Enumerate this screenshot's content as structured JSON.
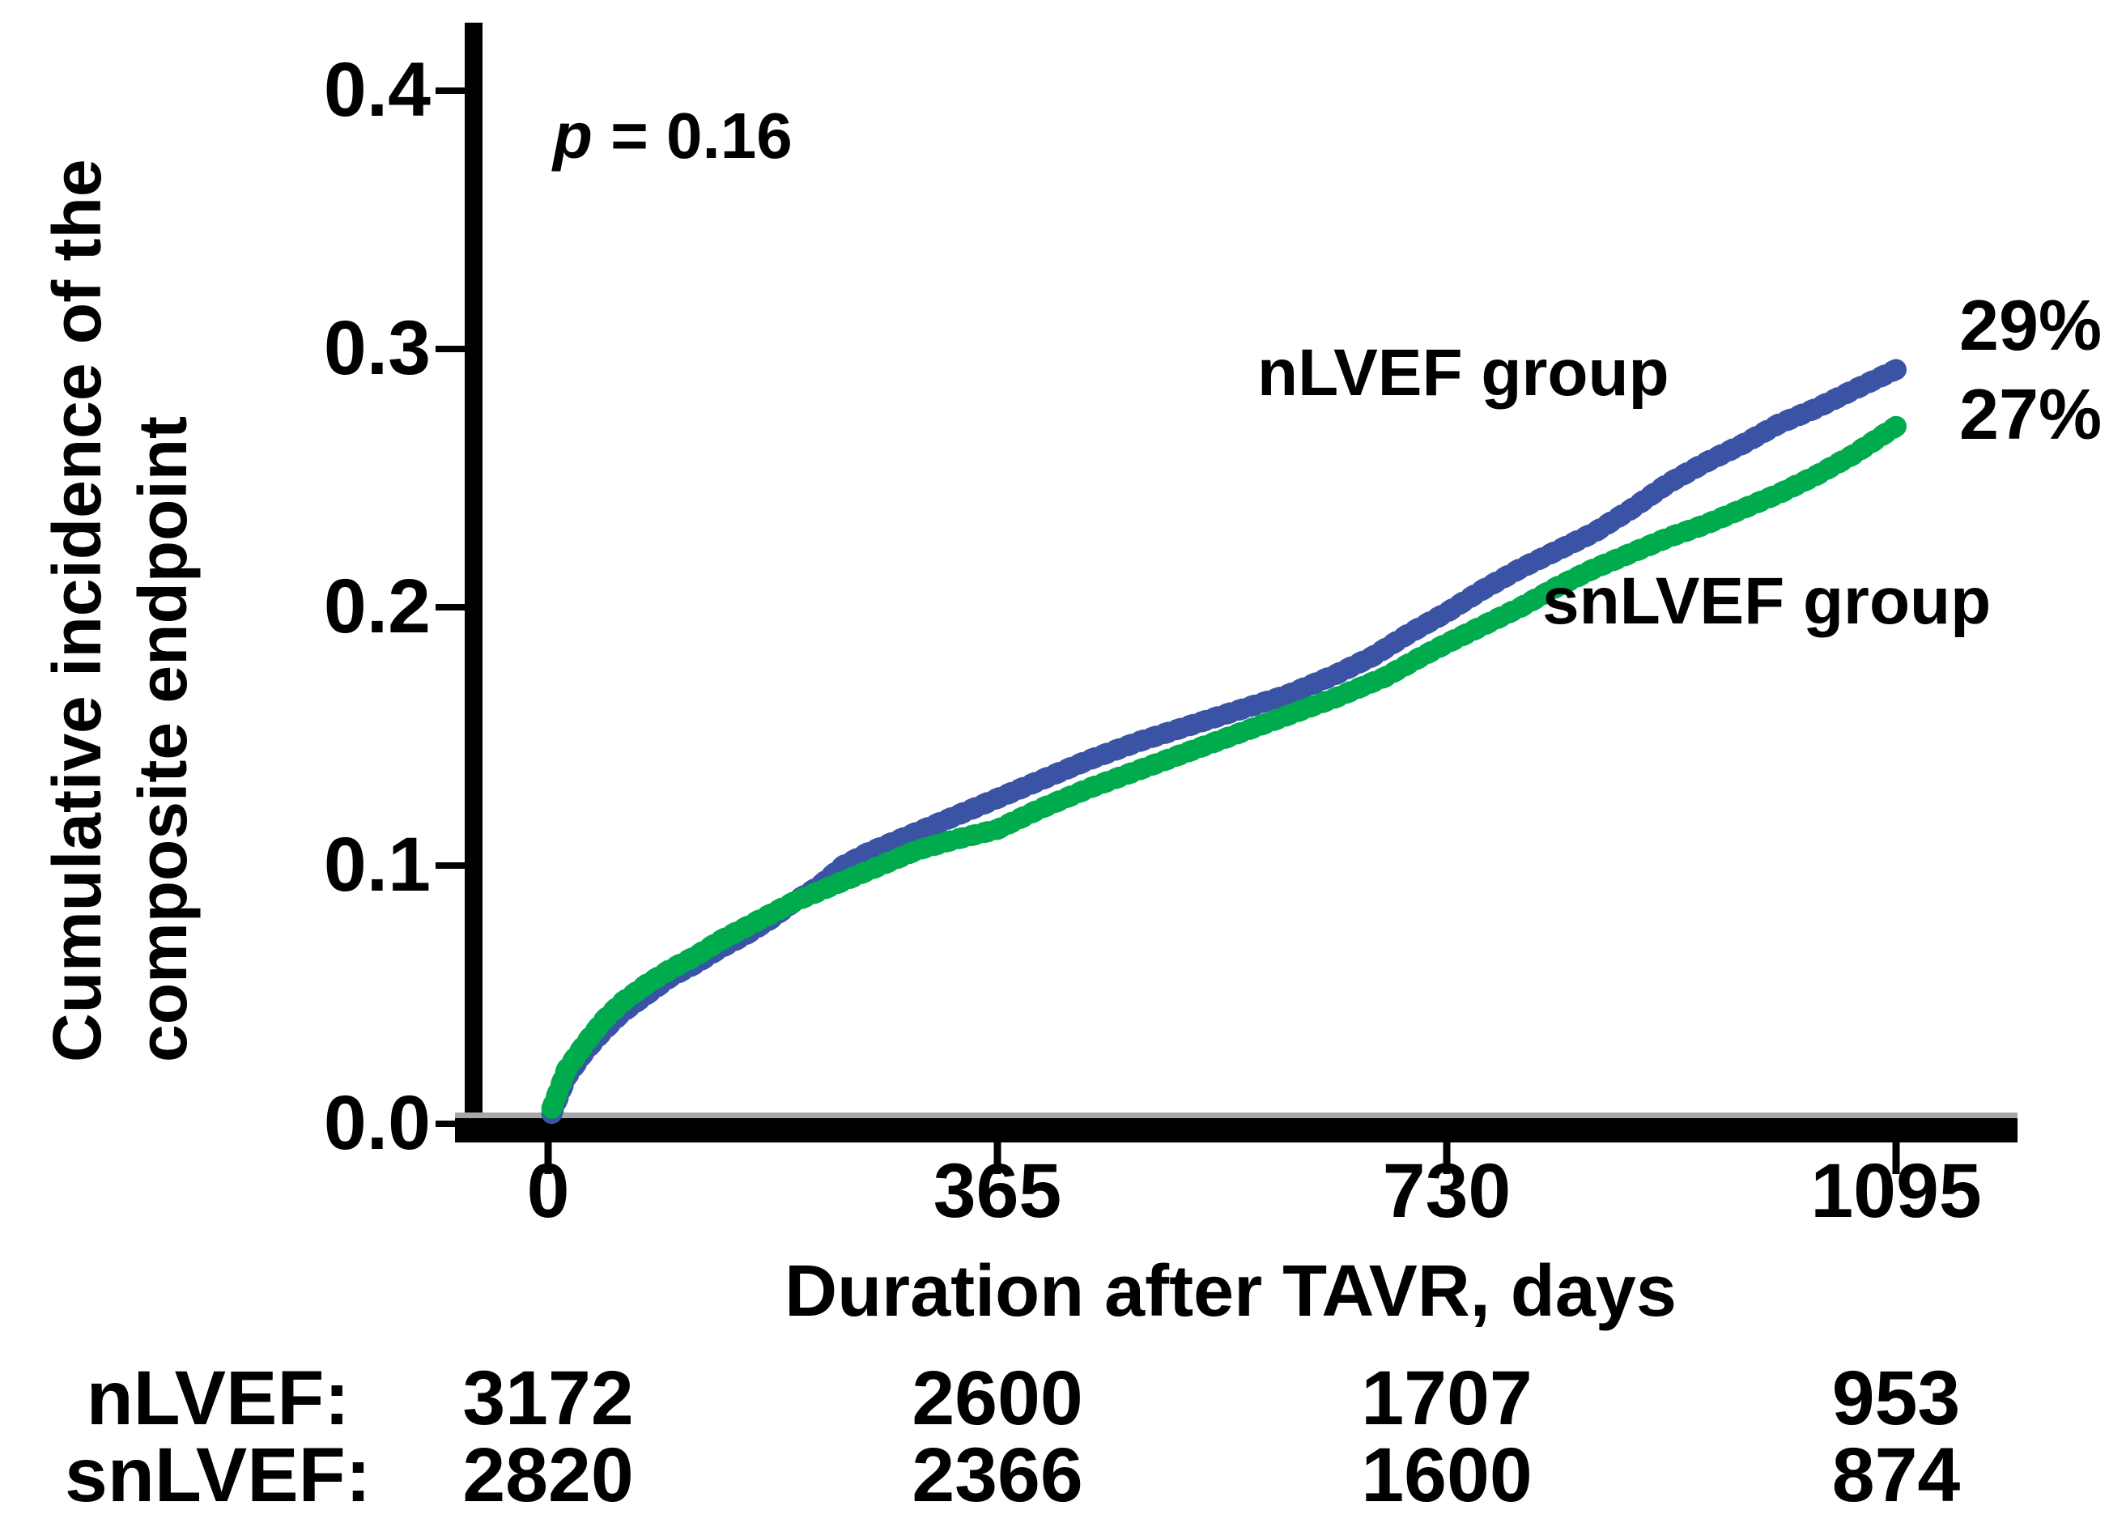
{
  "chart_data": {
    "type": "line",
    "subtype": "cumulative-incidence-kaplan-meier",
    "title": "",
    "xlabel": "Duration after TAVR, days",
    "ylabel_lines": [
      "Cumulative incidence of the",
      "composite endpoint"
    ],
    "x_ticks": [
      "0",
      "365",
      "730",
      "1095"
    ],
    "x_tick_values": [
      0,
      365,
      730,
      1095
    ],
    "y_ticks": [
      "0.0",
      "0.1",
      "0.2",
      "0.3",
      "0.4"
    ],
    "y_tick_values": [
      0.0,
      0.1,
      0.2,
      0.3,
      0.4
    ],
    "xlim": [
      0,
      1095
    ],
    "ylim": [
      0.0,
      0.4
    ],
    "grid": false,
    "legend_position": "curve-end-labels",
    "annotation": {
      "p_symbol": "p",
      "p_rest": " = 0.16"
    },
    "series": [
      {
        "name": "nLVEF group",
        "color": "#3a53a4",
        "end_label": "29%",
        "points": [
          [
            3,
            0.004
          ],
          [
            15,
            0.018
          ],
          [
            30,
            0.028
          ],
          [
            45,
            0.036
          ],
          [
            60,
            0.043
          ],
          [
            80,
            0.05
          ],
          [
            100,
            0.057
          ],
          [
            120,
            0.062
          ],
          [
            140,
            0.068
          ],
          [
            160,
            0.073
          ],
          [
            180,
            0.079
          ],
          [
            200,
            0.086
          ],
          [
            220,
            0.092
          ],
          [
            240,
            0.1
          ],
          [
            260,
            0.105
          ],
          [
            280,
            0.109
          ],
          [
            300,
            0.113
          ],
          [
            330,
            0.119
          ],
          [
            365,
            0.126
          ],
          [
            400,
            0.133
          ],
          [
            440,
            0.141
          ],
          [
            480,
            0.148
          ],
          [
            520,
            0.154
          ],
          [
            560,
            0.16
          ],
          [
            600,
            0.166
          ],
          [
            640,
            0.174
          ],
          [
            670,
            0.181
          ],
          [
            700,
            0.19
          ],
          [
            730,
            0.198
          ],
          [
            760,
            0.207
          ],
          [
            790,
            0.215
          ],
          [
            820,
            0.222
          ],
          [
            850,
            0.229
          ],
          [
            880,
            0.238
          ],
          [
            910,
            0.248
          ],
          [
            940,
            0.256
          ],
          [
            970,
            0.263
          ],
          [
            1000,
            0.271
          ],
          [
            1030,
            0.277
          ],
          [
            1060,
            0.284
          ],
          [
            1095,
            0.292
          ]
        ]
      },
      {
        "name": "snLVEF group",
        "color": "#00ab4e",
        "end_label": "27%",
        "points": [
          [
            3,
            0.006
          ],
          [
            15,
            0.021
          ],
          [
            30,
            0.031
          ],
          [
            45,
            0.04
          ],
          [
            60,
            0.047
          ],
          [
            80,
            0.054
          ],
          [
            100,
            0.06
          ],
          [
            120,
            0.065
          ],
          [
            140,
            0.071
          ],
          [
            160,
            0.076
          ],
          [
            180,
            0.081
          ],
          [
            200,
            0.086
          ],
          [
            220,
            0.09
          ],
          [
            240,
            0.094
          ],
          [
            260,
            0.098
          ],
          [
            280,
            0.102
          ],
          [
            300,
            0.106
          ],
          [
            330,
            0.11
          ],
          [
            365,
            0.114
          ],
          [
            400,
            0.122
          ],
          [
            440,
            0.13
          ],
          [
            480,
            0.137
          ],
          [
            520,
            0.144
          ],
          [
            560,
            0.151
          ],
          [
            600,
            0.158
          ],
          [
            640,
            0.165
          ],
          [
            680,
            0.173
          ],
          [
            710,
            0.181
          ],
          [
            730,
            0.186
          ],
          [
            760,
            0.193
          ],
          [
            790,
            0.2
          ],
          [
            820,
            0.208
          ],
          [
            850,
            0.215
          ],
          [
            880,
            0.221
          ],
          [
            910,
            0.227
          ],
          [
            940,
            0.232
          ],
          [
            970,
            0.238
          ],
          [
            1000,
            0.244
          ],
          [
            1030,
            0.251
          ],
          [
            1060,
            0.259
          ],
          [
            1095,
            0.27
          ]
        ]
      }
    ],
    "risk_table": {
      "rows": [
        {
          "label": "nLVEF:",
          "counts": [
            "3172",
            "2600",
            "1707",
            "953"
          ]
        },
        {
          "label": "snLVEF:",
          "counts": [
            "2820",
            "2366",
            "1600",
            "874"
          ]
        }
      ]
    }
  }
}
